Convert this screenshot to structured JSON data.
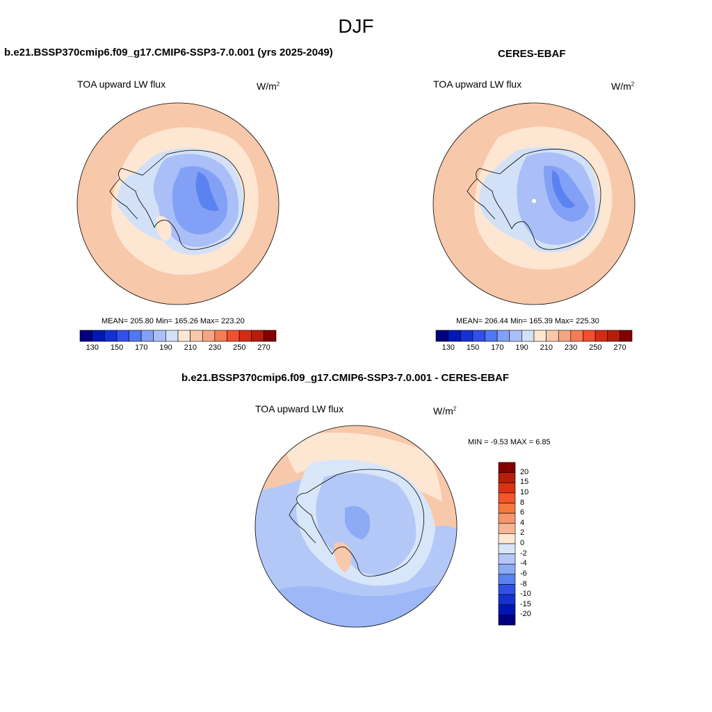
{
  "main_title": "DJF",
  "panels": [
    {
      "title": "b.e21.BSSP370cmip6.f09_g17.CMIP6-SSP3-7.0.001 (yrs 2025-2049)",
      "field": "TOA upward LW flux",
      "units": "W/m",
      "units_sup": "2",
      "stats": "MEAN= 205.80  Min= 165.26  Max= 223.20"
    },
    {
      "title": "CERES-EBAF",
      "field": "TOA upward LW flux",
      "units": "W/m",
      "units_sup": "2",
      "stats": "MEAN= 206.44  Min= 165.39  Max= 225.30"
    },
    {
      "title": "b.e21.BSSP370cmip6.f09_g17.CMIP6-SSP3-7.0.001 - CERES-EBAF",
      "field": "TOA upward LW flux",
      "units": "W/m",
      "units_sup": "2",
      "stats": "MIN =  -9.53 MAX =   6.85"
    }
  ],
  "abs_colorbar": {
    "colors": [
      "#00007f",
      "#0019b3",
      "#1432d2",
      "#3250e6",
      "#5078f0",
      "#82a0f5",
      "#aabef7",
      "#d2e1f7",
      "#fde6d2",
      "#f8c8aa",
      "#f5a582",
      "#f57d55",
      "#f0502d",
      "#d22d14",
      "#b41e0a",
      "#820000"
    ],
    "tick_labels": [
      "130",
      "150",
      "170",
      "190",
      "210",
      "230",
      "250",
      "270"
    ]
  },
  "diff_colorbar": {
    "colors": [
      "#820000",
      "#b41e0a",
      "#dc3214",
      "#f55528",
      "#f5783c",
      "#f5966e",
      "#f8b496",
      "#fde6d2",
      "#d8e6fa",
      "#b4c8f8",
      "#8caaf5",
      "#5a82f0",
      "#3250e6",
      "#1432d2",
      "#0014b4",
      "#00007f"
    ],
    "tick_labels": [
      "20",
      "15",
      "10",
      "8",
      "6",
      "4",
      "2",
      "0",
      "-2",
      "-4",
      "-6",
      "-8",
      "-10",
      "-15",
      "-20"
    ]
  },
  "map_colors": {
    "ocean_outer": "#f8c8aa",
    "band_light": "#fde6d2",
    "coast_light_blue": "#d2e1f7",
    "ice_blue1": "#aabef7",
    "ice_blue2": "#82a0f5",
    "ice_blue3": "#5a82f0",
    "diff_pos": "#f8c8aa",
    "diff_light_pos": "#fde6d2",
    "diff_light_neg": "#d8e6fa",
    "diff_neg": "#b4c8f8",
    "diff_neg2": "#8caaf5"
  }
}
